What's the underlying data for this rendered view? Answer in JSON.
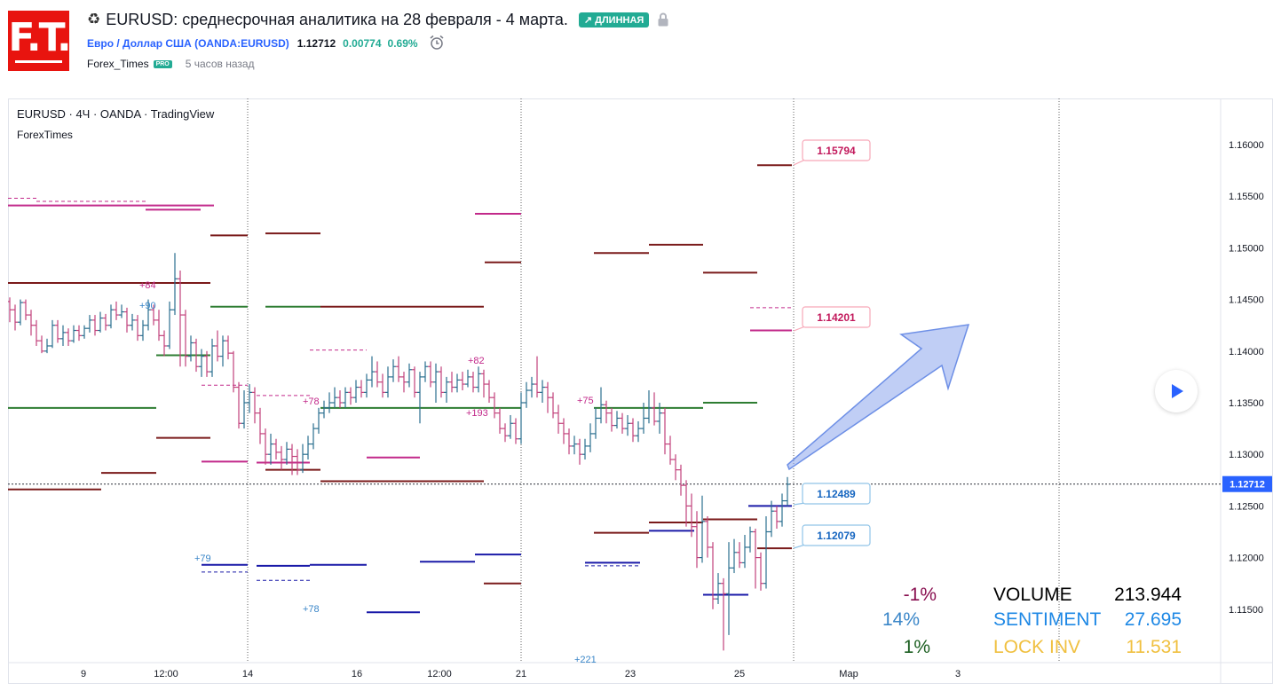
{
  "header": {
    "recycle_icon": "♻",
    "title": "EURUSD: среднесрочная аналитика на 28 февраля - 4 марта.",
    "badge": "↗ ДЛИННАЯ",
    "symbol_link": "Евро / Доллар США (OANDA:EURUSD)",
    "price": "1.12712",
    "change": "0.00774",
    "change_pct": "0.69%",
    "author": "Forex_Times",
    "pro_badge": "PRO",
    "time_ago": "5 часов назад",
    "logo_text": "F.T.",
    "icons": [
      "recycle-icon",
      "lock-icon",
      "alarm-clock-icon",
      "play-icon"
    ]
  },
  "chart": {
    "header": "EURUSD · 4Ч · OANDA · TradingView",
    "sub_header": "ForexTimes",
    "price_axis": [
      "1.16000",
      "1.15500",
      "1.15000",
      "1.14500",
      "1.14000",
      "1.13500",
      "1.13000",
      "1.12500",
      "1.12000",
      "1.11500"
    ],
    "time_axis": [
      "9",
      "12:00",
      "14",
      "16",
      "12:00",
      "21",
      "23",
      "25",
      "Мар",
      "3"
    ],
    "current_price_label": "1.12712",
    "callouts": [
      "1.15794",
      "1.14201",
      "1.12489",
      "1.12079"
    ],
    "level_annotations": [
      "+84",
      "+90",
      "+78",
      "+193",
      "+82",
      "+75",
      "+79",
      "+78",
      "+221"
    ],
    "stats": {
      "rows": [
        {
          "pct": "-1%",
          "label": "VOLUME",
          "value": "213.944"
        },
        {
          "pct": "14%",
          "label": "SENTIMENT",
          "value": "27.695"
        },
        {
          "pct": "1%",
          "label": "LOCK INV",
          "value": "11.531"
        }
      ]
    },
    "colors": {
      "up": "#2a6f8f",
      "down": "#c2417b",
      "dark_red": "#7a1a1a",
      "green": "#2e7d32",
      "magenta": "#c2298a",
      "navy": "#1a1aa8",
      "arrow": "#8ca6ec",
      "accent": "#2962ff",
      "stat_pct_1": "#880e4f",
      "stat_pct_2": "#3a86c8",
      "stat_pct_3": "#1b5e20",
      "stat_label_2": "#1e88e5",
      "stat_label_3": "#f0c040"
    }
  }
}
